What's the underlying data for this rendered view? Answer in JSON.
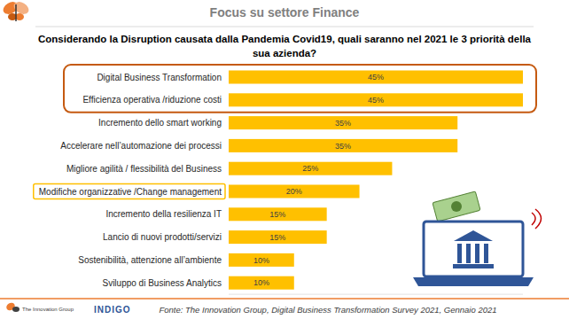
{
  "chart_data": {
    "type": "bar",
    "orientation": "horizontal",
    "title": "Focus su settore Finance",
    "subtitle": "Considerando la Disruption causata dalla Pandemia Covid19, quali saranno nel 2021 le 3 priorità della sua azienda?",
    "categories": [
      "Digital Business Transformation",
      "Efficienza operativa /riduzione costi",
      "Incremento dello smart working",
      "Accelerare nell’automazione dei processi",
      "Migliore agilità / flessibilità del Business",
      "Modifiche organizzative /Change management",
      "Incremento della resilienza IT",
      "Lancio di nuovi prodotti/servizi",
      "Sostenibilità, attenzione all’ambiente",
      "Sviluppo di Business Analytics"
    ],
    "values": [
      45,
      45,
      35,
      35,
      25,
      20,
      15,
      15,
      10,
      10
    ],
    "value_labels": [
      "45%",
      "45%",
      "35%",
      "35%",
      "25%",
      "20%",
      "15%",
      "15%",
      "10%",
      "10%"
    ],
    "color": "#FFC000",
    "xlim": [
      0,
      45
    ],
    "data_labels": true,
    "tick_labels": "y",
    "grid": false,
    "annotations": [
      "Fonte: The Innovation Group, Digital Business Transformation Survey 2021, Gennaio 2021",
      "The Innovation Group",
      "INDIGO"
    ]
  }
}
